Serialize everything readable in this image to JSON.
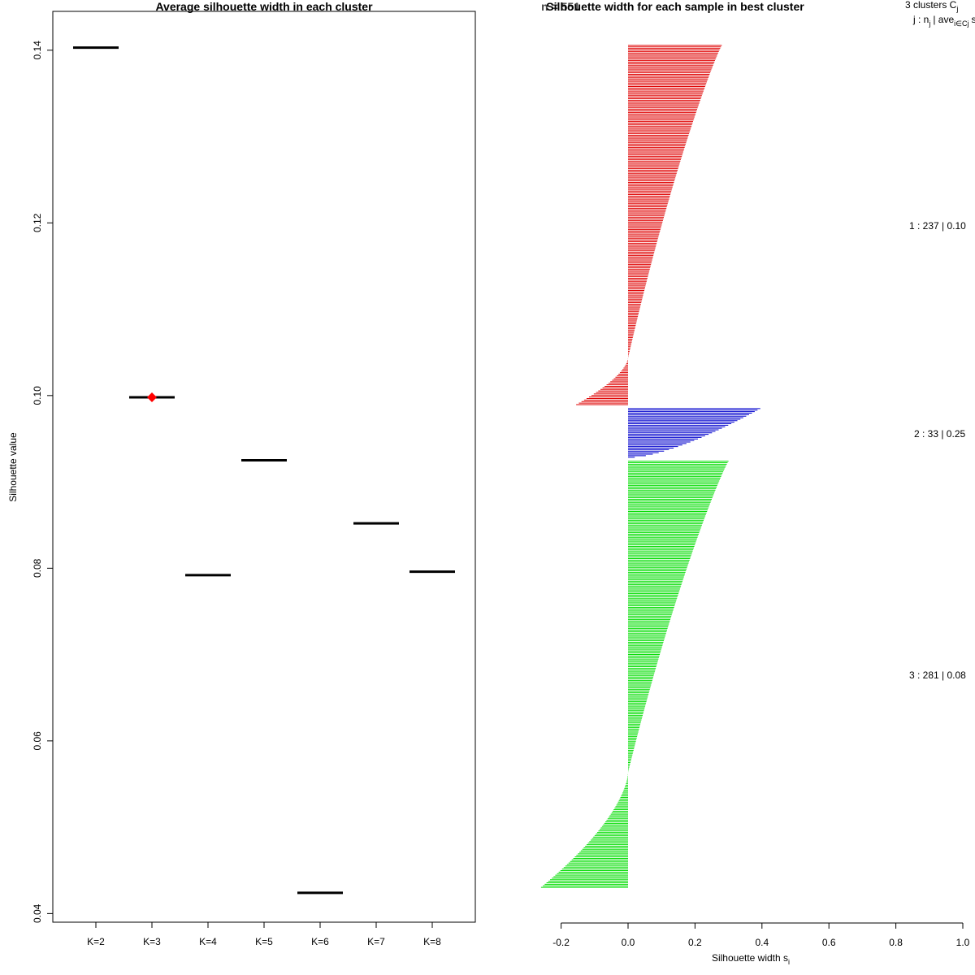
{
  "chart_data": [
    {
      "type": "scatter",
      "title": "Average silhouette width in each cluster",
      "xlabel": "",
      "ylabel": "Silhouette value",
      "categories": [
        "K=2",
        "K=3",
        "K=4",
        "K=5",
        "K=6",
        "K=7",
        "K=8"
      ],
      "values": [
        0.1403,
        0.0998,
        0.0792,
        0.0925,
        0.0424,
        0.0852,
        0.0796
      ],
      "best_index": 1,
      "yticks": [
        "0.04",
        "0.06",
        "0.08",
        "0.10",
        "0.12",
        "0.14"
      ],
      "ylim": [
        0.039,
        0.1445
      ],
      "colors": {
        "marker": "#000000",
        "best": "#ff0000"
      }
    },
    {
      "type": "bar",
      "title": "Silhouette width for each sample in best cluster",
      "title_overlap_text": "n = 551",
      "xlabel": "Silhouette width s",
      "xlabel_sub": "i",
      "xticks": [
        "-0.2",
        "0.0",
        "0.2",
        "0.4",
        "0.6",
        "0.8",
        "1.0"
      ],
      "xlim": [
        -0.2,
        1.0
      ],
      "legend_header": {
        "line1": "3 clusters C",
        "line1_sub": "j",
        "line2": "j : n",
        "line2_sub": "j",
        "line2_tail": "| ave",
        "line2_sub2": "i∈Cj",
        "line2_end": "s"
      },
      "clusters": [
        {
          "id": 1,
          "n": 237,
          "avg": 0.1,
          "label": "1 :  237  |  0.10",
          "color": "#df0000",
          "max": 0.28,
          "min": -0.155,
          "zero_frac": 0.87
        },
        {
          "id": 2,
          "n": 33,
          "avg": 0.25,
          "label": "2 :  33  |  0.25",
          "color": "#0000cd",
          "max": 0.395,
          "min": 0.02,
          "zero_frac": 1.0
        },
        {
          "id": 3,
          "n": 281,
          "avg": 0.08,
          "label": "3 :  281  |  0.08",
          "color": "#00dd00",
          "max": 0.3,
          "min": -0.26,
          "zero_frac": 0.73
        }
      ]
    }
  ]
}
